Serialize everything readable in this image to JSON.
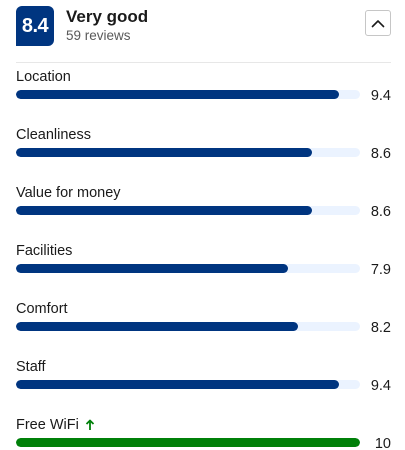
{
  "summary": {
    "score": "8.4",
    "rating_label": "Very good",
    "reviews": "59 reviews"
  },
  "collapse_icon": "chevron-up-icon",
  "colors": {
    "brand": "#003580",
    "bar_track": "#ebf3ff",
    "high_score": "#008009"
  },
  "categories": [
    {
      "label": "Location",
      "score": "9.4",
      "value": 9.4
    },
    {
      "label": "Cleanliness",
      "score": "8.6",
      "value": 8.6
    },
    {
      "label": "Value for money",
      "score": "8.6",
      "value": 8.6
    },
    {
      "label": "Facilities",
      "score": "7.9",
      "value": 7.9
    },
    {
      "label": "Comfort",
      "score": "8.2",
      "value": 8.2
    },
    {
      "label": "Staff",
      "score": "9.4",
      "value": 9.4
    },
    {
      "label": "Free WiFi",
      "score": "10",
      "value": 10,
      "highlight": true,
      "icon": "arrow-up-icon"
    }
  ],
  "scale_max": 10
}
